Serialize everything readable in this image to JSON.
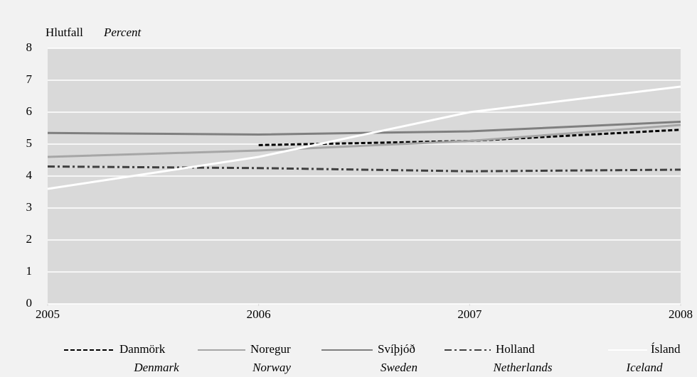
{
  "chart_data": {
    "type": "line",
    "y_label": "Hlutfall",
    "y_label_en": "Percent",
    "x": [
      2005,
      2006,
      2007,
      2008
    ],
    "xlim": [
      2005,
      2008
    ],
    "xticks": [
      2005,
      2006,
      2007,
      2008
    ],
    "ylim": [
      0,
      8
    ],
    "yticks": [
      0,
      1,
      2,
      3,
      4,
      5,
      6,
      7,
      8
    ],
    "grid": true,
    "series": [
      {
        "name": "Danmörk",
        "name_en": "Denmark",
        "color": "#000000",
        "dash": "dashed",
        "values": [
          null,
          4.97,
          5.1,
          5.45
        ]
      },
      {
        "name": "Noregur",
        "name_en": "Norway",
        "color": "#a6a6a6",
        "dash": "solid",
        "values": [
          4.6,
          4.8,
          5.1,
          5.6
        ]
      },
      {
        "name": "Svíþjóð",
        "name_en": "Sweden",
        "color": "#7f7f7f",
        "dash": "solid",
        "values": [
          5.35,
          5.3,
          5.4,
          5.7
        ]
      },
      {
        "name": "Holland",
        "name_en": "Netherlands",
        "color": "#404040",
        "dash": "dashdot",
        "values": [
          4.3,
          4.25,
          4.15,
          4.2
        ]
      },
      {
        "name": "Ísland",
        "name_en": "Iceland",
        "color": "#ffffff",
        "dash": "solid",
        "values": [
          3.6,
          4.6,
          6.0,
          6.8
        ]
      }
    ]
  }
}
